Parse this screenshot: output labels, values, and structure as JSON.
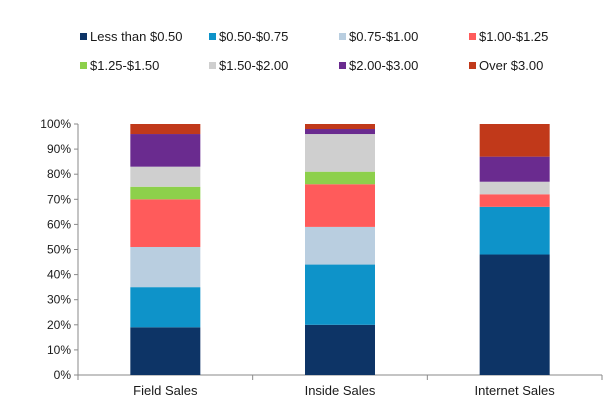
{
  "chart_data": {
    "type": "bar",
    "stacked": true,
    "percent": true,
    "categories": [
      "Field Sales",
      "Inside Sales",
      "Internet Sales"
    ],
    "series": [
      {
        "name": "Less than $0.50",
        "color": "#0D3466",
        "values": [
          19,
          20,
          48
        ]
      },
      {
        "name": "$0.50-$0.75",
        "color": "#0E93C9",
        "values": [
          16,
          24,
          19
        ]
      },
      {
        "name": "$0.75-$1.00",
        "color": "#B9CEE0",
        "values": [
          16,
          15,
          0
        ]
      },
      {
        "name": "$1.00-$1.25",
        "color": "#FF5B5B",
        "values": [
          19,
          17,
          5
        ]
      },
      {
        "name": "$1.25-$1.50",
        "color": "#8DD04B",
        "values": [
          5,
          5,
          0
        ]
      },
      {
        "name": "$1.50-$2.00",
        "color": "#CFCFCF",
        "values": [
          8,
          15,
          5
        ]
      },
      {
        "name": "$2.00-$3.00",
        "color": "#6A2B8F",
        "values": [
          13,
          2,
          10
        ]
      },
      {
        "name": "Over $3.00",
        "color": "#C1391A",
        "values": [
          4,
          2,
          13
        ]
      }
    ],
    "y_ticks": [
      "0%",
      "10%",
      "20%",
      "30%",
      "40%",
      "50%",
      "60%",
      "70%",
      "80%",
      "90%",
      "100%"
    ],
    "ylim": [
      0,
      100
    ],
    "legend_position": "top",
    "grid": false
  }
}
